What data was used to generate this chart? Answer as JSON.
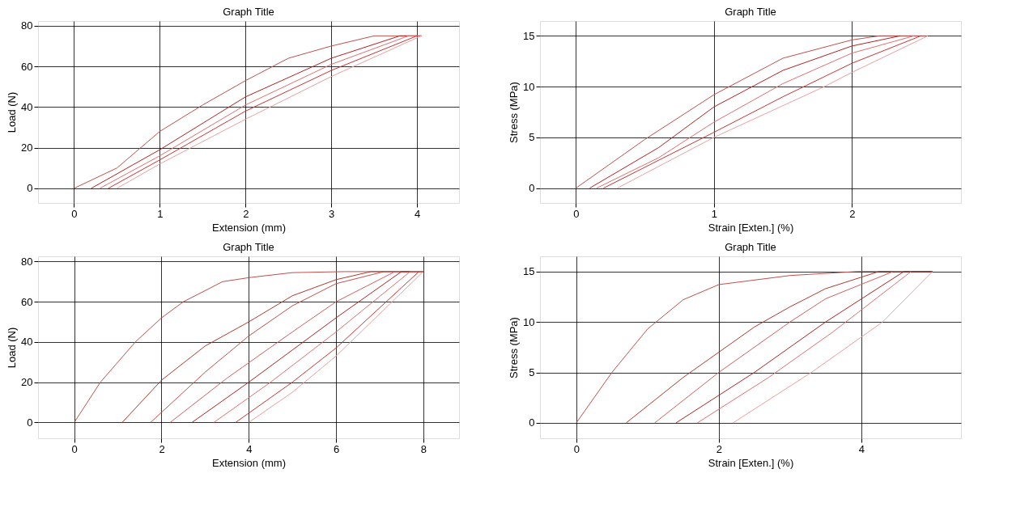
{
  "chart_data": [
    {
      "type": "line",
      "title": "Graph Title",
      "xlabel": "Extension (mm)",
      "ylabel": "Load (N)",
      "xlim": [
        -0.42,
        4.49
      ],
      "ylim": [
        -7.2,
        82.3
      ],
      "xticks": [
        0,
        1,
        2,
        3,
        4
      ],
      "yticks": [
        0,
        20,
        40,
        60,
        80
      ],
      "grid": true,
      "line_style": "solid",
      "series": [
        {
          "color": "#c0504d",
          "x": [
            0,
            0.5,
            1,
            1.5,
            2,
            2.5,
            3,
            3.5,
            4.05
          ],
          "values": [
            0,
            10,
            28,
            41,
            53,
            64,
            70,
            75,
            75
          ]
        },
        {
          "color": "#b22222",
          "x": [
            0.2,
            1,
            2,
            3,
            3.8,
            4.05
          ],
          "values": [
            0,
            19,
            45,
            64,
            75,
            75
          ]
        },
        {
          "color": "#e07070",
          "x": [
            0.3,
            1,
            2,
            3,
            3.9,
            4.05
          ],
          "values": [
            0,
            16,
            41,
            61,
            75,
            75
          ]
        },
        {
          "color": "#cc3333",
          "x": [
            0.4,
            1,
            2,
            3,
            4
          ],
          "values": [
            0,
            14,
            38,
            58,
            75
          ]
        },
        {
          "color": "#eaa0a0",
          "x": [
            0.5,
            1,
            2,
            3,
            4.05
          ],
          "values": [
            0,
            12,
            34,
            55,
            75
          ]
        }
      ]
    },
    {
      "type": "line",
      "title": "Graph Title",
      "xlabel": "Strain [Exten.] (%)",
      "ylabel": "Stress (MPa)",
      "xlim": [
        -0.26,
        2.79
      ],
      "ylim": [
        -1.46,
        16.46
      ],
      "xticks": [
        0,
        1,
        2
      ],
      "yticks": [
        0,
        5,
        10,
        15
      ],
      "grid": true,
      "line_style": "solid",
      "series": [
        {
          "color": "#c0504d",
          "x": [
            0,
            0.5,
            1,
            1.5,
            2,
            2.2,
            2.55
          ],
          "values": [
            0,
            4.8,
            9.2,
            12.8,
            14.6,
            15,
            15
          ]
        },
        {
          "color": "#b22222",
          "x": [
            0.1,
            0.6,
            1,
            1.5,
            2,
            2.35
          ],
          "values": [
            0,
            4,
            8,
            11.6,
            14,
            15
          ]
        },
        {
          "color": "#e07070",
          "x": [
            0.15,
            0.6,
            1,
            1.5,
            2,
            2.45
          ],
          "values": [
            0,
            3,
            6.5,
            10.3,
            13.3,
            15
          ]
        },
        {
          "color": "#cc3333",
          "x": [
            0.2,
            1,
            1.5,
            2,
            2.5
          ],
          "values": [
            0,
            5.5,
            9,
            12.3,
            15
          ]
        },
        {
          "color": "#eaa0a0",
          "x": [
            0.3,
            1,
            1.8,
            2,
            2.55
          ],
          "values": [
            0,
            5,
            10,
            11.4,
            15
          ]
        }
      ]
    },
    {
      "type": "line",
      "title": "Graph Title",
      "xlabel": "Extension (mm)",
      "ylabel": "Load (N)",
      "xlim": [
        -0.83,
        8.82
      ],
      "ylim": [
        -7.9,
        82.6
      ],
      "xticks": [
        0,
        2,
        4,
        6,
        8
      ],
      "yticks": [
        0,
        20,
        40,
        60,
        80
      ],
      "grid": true,
      "line_style": "solid",
      "series": [
        {
          "color": "#c0504d",
          "x": [
            0,
            0.6,
            1.4,
            2,
            2.5,
            3.4,
            4,
            5,
            6.2,
            8
          ],
          "values": [
            0,
            20,
            40,
            52,
            60,
            70,
            72,
            74.5,
            75,
            75
          ]
        },
        {
          "color": "#b03a2e",
          "x": [
            1.1,
            2,
            3,
            4,
            5,
            6,
            6.8,
            8
          ],
          "values": [
            0,
            21,
            38,
            50,
            63,
            71,
            75,
            75
          ]
        },
        {
          "color": "#c0504d",
          "x": [
            1.75,
            3,
            4,
            5,
            6,
            7.1,
            8
          ],
          "values": [
            0,
            25,
            43,
            58,
            69,
            75,
            75
          ]
        },
        {
          "color": "#d06060",
          "x": [
            2.2,
            3.5,
            5,
            6,
            7.35,
            8
          ],
          "values": [
            0,
            22,
            45,
            60,
            75,
            75
          ]
        },
        {
          "color": "#b22222",
          "x": [
            2.7,
            4,
            5,
            6,
            7.5,
            8
          ],
          "values": [
            0,
            20,
            36,
            52,
            75,
            75
          ]
        },
        {
          "color": "#e07070",
          "x": [
            3.2,
            4.5,
            6,
            7.7,
            8
          ],
          "values": [
            0,
            20,
            45,
            75,
            75
          ]
        },
        {
          "color": "#cc3333",
          "x": [
            3.7,
            5,
            6,
            7.9
          ],
          "values": [
            0,
            20,
            37,
            75
          ]
        },
        {
          "color": "#eaa0a0",
          "x": [
            4,
            5,
            6,
            8
          ],
          "values": [
            0,
            15,
            33,
            75
          ]
        }
      ]
    },
    {
      "type": "line",
      "title": "Graph Title",
      "xlabel": "Strain [Exten.] (%)",
      "ylabel": "Stress (MPa)",
      "xlim": [
        -0.51,
        5.4
      ],
      "ylim": [
        -1.53,
        16.5
      ],
      "xticks": [
        0,
        2,
        4
      ],
      "yticks": [
        0,
        5,
        10,
        15
      ],
      "grid": true,
      "line_style": "solid",
      "series": [
        {
          "color": "#c0504d",
          "x": [
            0,
            0.5,
            1,
            1.5,
            2,
            3,
            3.95,
            5
          ],
          "values": [
            0,
            5,
            9.3,
            12.2,
            13.7,
            14.6,
            15,
            15
          ]
        },
        {
          "color": "#b03a2e",
          "x": [
            0.7,
            1.5,
            2,
            2.5,
            3,
            3.5,
            4.25,
            5
          ],
          "values": [
            0,
            4.5,
            7,
            9.5,
            11.5,
            13.3,
            15,
            15
          ]
        },
        {
          "color": "#d06060",
          "x": [
            1.1,
            2,
            3,
            3.5,
            4.45,
            5
          ],
          "values": [
            0,
            5,
            10,
            12.3,
            15,
            15
          ]
        },
        {
          "color": "#b22222",
          "x": [
            1.4,
            2.5,
            3.5,
            4.6,
            5
          ],
          "values": [
            0,
            5,
            10,
            15,
            15
          ]
        },
        {
          "color": "#e07070",
          "x": [
            1.7,
            2.7,
            3.6,
            4.7
          ],
          "values": [
            0,
            4.5,
            9,
            15
          ]
        },
        {
          "color": "#eaa0a0",
          "x": [
            2.2,
            3.3,
            4.3,
            5
          ],
          "values": [
            0,
            5,
            10,
            15
          ]
        }
      ]
    }
  ]
}
